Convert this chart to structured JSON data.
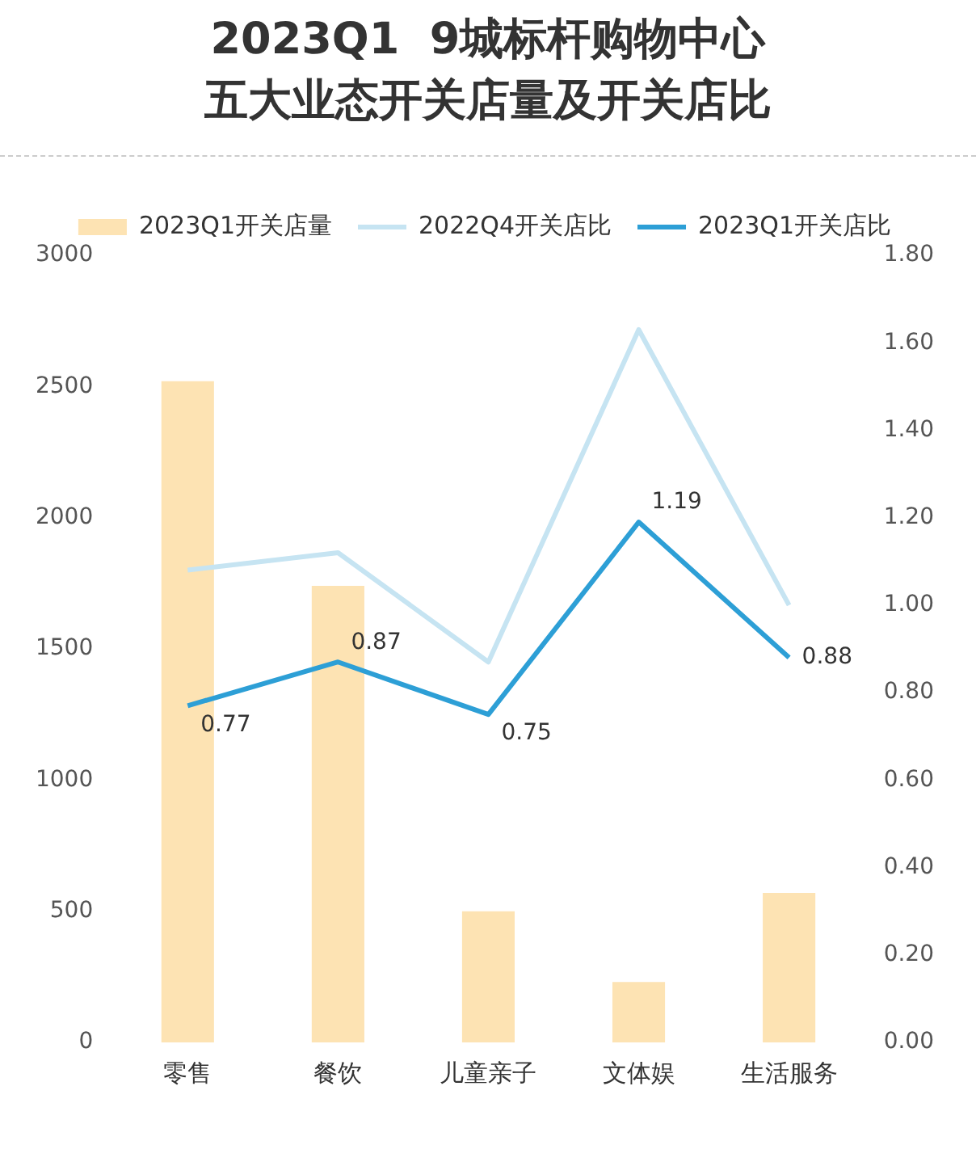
{
  "chart_data": {
    "type": "bar",
    "title": "2023Q1  9城标杆购物中心五大业态开关店量及开关店比",
    "categories": [
      "零售",
      "餐饮",
      "儿童亲子",
      "文体娱",
      "生活服务"
    ],
    "series": [
      {
        "name": "2023Q1开关店量",
        "color": "#fde3b3",
        "values": [
          2520,
          1740,
          500,
          230,
          570
        ]
      },
      {
        "name": "2022Q4开关店比",
        "type": "line",
        "axis": "y2",
        "color": "#c6e4f2",
        "values": [
          1.08,
          1.12,
          0.87,
          1.63,
          1.0
        ]
      },
      {
        "name": "2023Q1开关店比",
        "type": "line",
        "axis": "y2",
        "color": "#2d9fd6",
        "values": [
          0.77,
          0.87,
          0.75,
          1.19,
          0.88
        ],
        "value_labels": [
          "0.77",
          "0.87",
          "0.75",
          "1.19",
          "0.88"
        ]
      }
    ],
    "ylim": [
      0,
      3000
    ],
    "yticks": [
      0,
      500,
      1000,
      1500,
      2000,
      2500,
      3000
    ],
    "y2lim": [
      0,
      1.8
    ],
    "y2ticks": [
      {
        "value": 0,
        "label": "0.00"
      },
      {
        "value": 0.2,
        "label": "0.20"
      },
      {
        "value": 0.4,
        "label": "0.40"
      },
      {
        "value": 0.6,
        "label": "0.60"
      },
      {
        "value": 0.8,
        "label": "0.80"
      },
      {
        "value": 1.0,
        "label": "1.00"
      },
      {
        "value": 1.2,
        "label": "1.20"
      },
      {
        "value": 1.4,
        "label": "1.40"
      },
      {
        "value": 1.6,
        "label": "1.60"
      },
      {
        "value": 1.8,
        "label": "1.80"
      }
    ],
    "grid": false,
    "legend": "top",
    "marker": "none",
    "line_style": "solid"
  }
}
